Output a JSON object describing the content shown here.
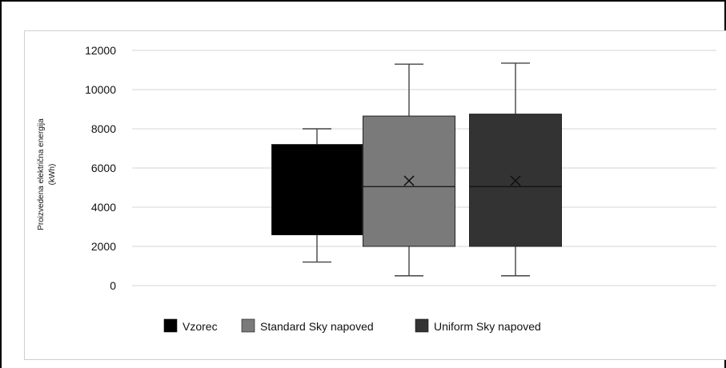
{
  "chart_data": {
    "type": "boxplot",
    "title": "",
    "xlabel": "",
    "ylabel": [
      "Proizvedena električna energija",
      "(kWh)"
    ],
    "ylim": [
      0,
      12000
    ],
    "yticks": [
      0,
      2000,
      4000,
      6000,
      8000,
      10000,
      12000
    ],
    "ytick_labels": [
      "0",
      "2000",
      "4000",
      "6000",
      "8000",
      "10000",
      "12000"
    ],
    "grid": true,
    "legend": "bottom",
    "series": [
      {
        "name": "Vzorec",
        "color": "#000000",
        "min": 1200,
        "q1": 2600,
        "median": 2600,
        "q3": 7200,
        "max": 8000,
        "mean": null
      },
      {
        "name": "Standard Sky napoved",
        "color": "#7a7a7a",
        "min": 500,
        "q1": 2000,
        "median": 5050,
        "q3": 8650,
        "max": 11300,
        "mean": 5350
      },
      {
        "name": "Uniform Sky napoved",
        "color": "#333333",
        "min": 500,
        "q1": 2000,
        "median": 5050,
        "q3": 8750,
        "max": 11350,
        "mean": 5350
      }
    ]
  }
}
